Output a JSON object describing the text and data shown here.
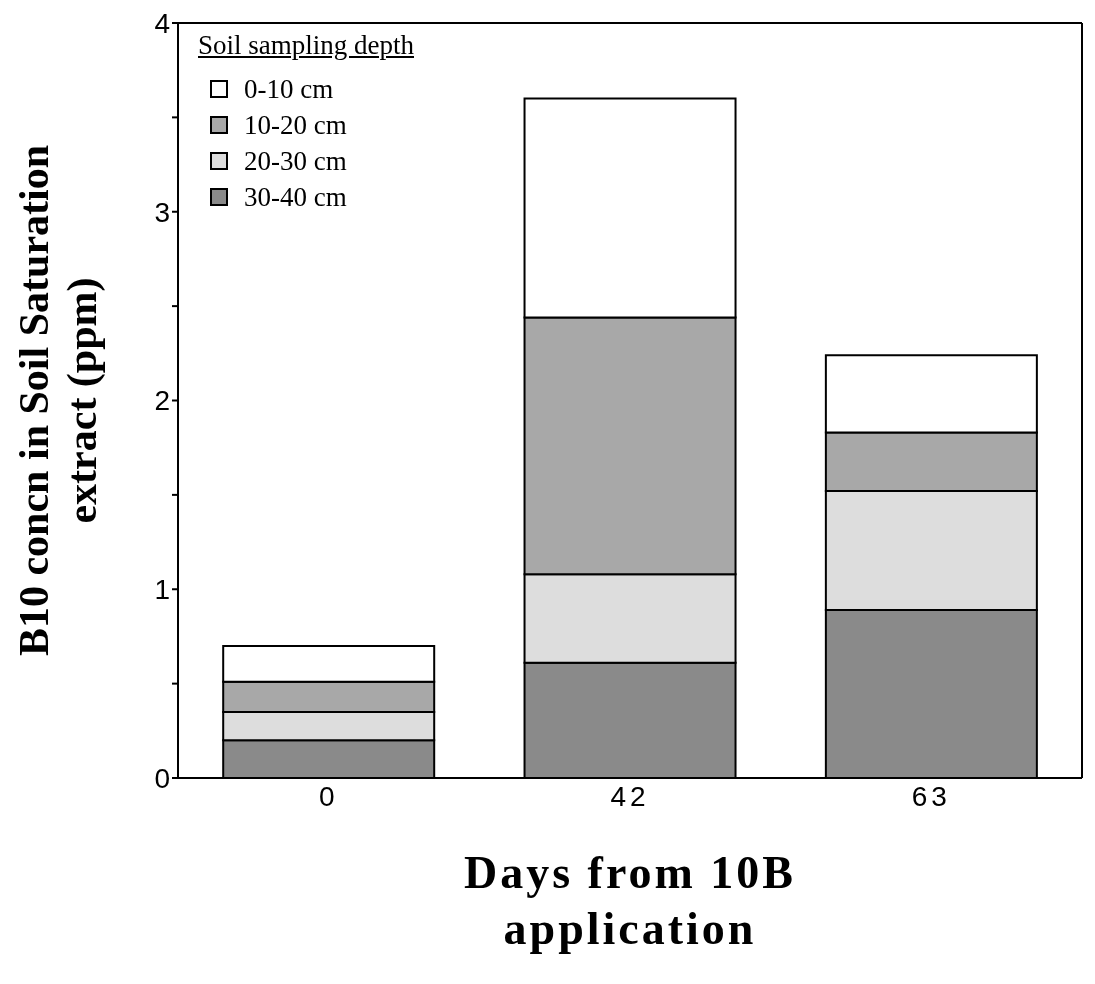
{
  "chart_data": {
    "type": "bar",
    "stacked": true,
    "xlabel": "Days from 10B application",
    "ylabel": "B10 concn in Soil Saturation extract (ppm)",
    "legend_title": "Soil sampling depth",
    "legend": "top left",
    "categories": [
      "0",
      "42",
      "63"
    ],
    "series": [
      {
        "name": "30-40 cm",
        "color": "#8a8a8a",
        "values": [
          0.2,
          0.61,
          0.89
        ]
      },
      {
        "name": "20-30 cm",
        "color": "#dddddd",
        "values": [
          0.15,
          0.47,
          0.63
        ]
      },
      {
        "name": "10-20 cm",
        "color": "#a8a8a8",
        "values": [
          0.16,
          1.36,
          0.31
        ]
      },
      {
        "name": "0-10 cm",
        "color": "#ffffff",
        "values": [
          0.19,
          1.16,
          0.41
        ]
      }
    ],
    "ylim": [
      0,
      4
    ],
    "yticks": [
      0,
      {
        "value": 0.5,
        "label": null
      },
      1,
      {
        "value": 1.5,
        "label": null
      },
      2,
      {
        "value": 2.5,
        "label": null
      },
      3,
      {
        "value": 3.5,
        "label": null
      },
      4
    ]
  }
}
